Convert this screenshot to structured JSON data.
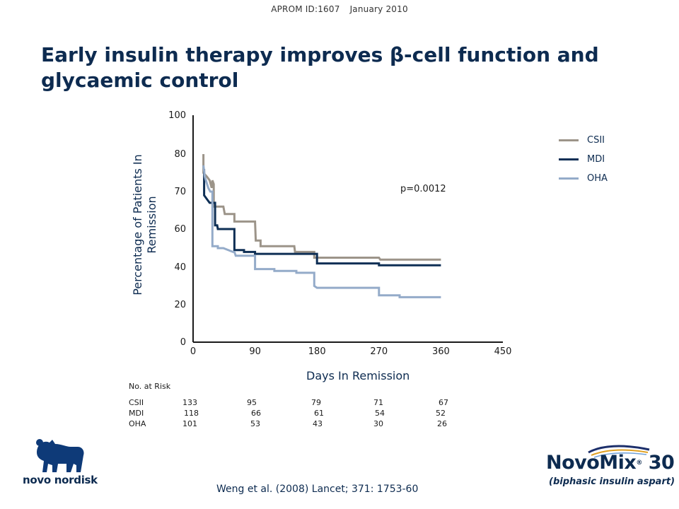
{
  "header": {
    "id_label": "APROM ID:1607",
    "date": "January 2010"
  },
  "slide_title": "Early insulin therapy improves β-cell function and glycaemic control",
  "footer": {
    "citation": "Weng et al. (2008) Lancet; 371: 1753-60",
    "company_logo_text": "novo nordisk",
    "product_logo": {
      "name": "NovoMix",
      "number": "30",
      "subtitle": "(biphasic insulin aspart)"
    }
  },
  "p_value": "p=0.0012",
  "risk_table": {
    "title": "No. at Risk",
    "rows": [
      {
        "label": "CSII",
        "values": [
          "133",
          "95",
          "79",
          "71",
          "67"
        ]
      },
      {
        "label": "MDI",
        "values": [
          "118",
          "66",
          "61",
          "54",
          "52"
        ]
      },
      {
        "label": "OHA",
        "values": [
          "101",
          "53",
          "43",
          "30",
          "26"
        ]
      }
    ]
  },
  "chart_data": {
    "type": "line",
    "title": "",
    "xlabel": "Days In Remission",
    "ylabel_lines": [
      "Percentage of Patients In",
      "Remission"
    ],
    "x_ticks": [
      "0",
      "90",
      "180",
      "270",
      "360",
      "450"
    ],
    "y_ticks": [
      "0",
      "20",
      "40",
      "60",
      "70",
      "80",
      "100"
    ],
    "xlim": [
      0,
      450
    ],
    "ylim": [
      0,
      100
    ],
    "grid": false,
    "legend_position": "top-right",
    "series": [
      {
        "name": "CSII",
        "color": "#9c9489",
        "points": [
          [
            15,
            80
          ],
          [
            15,
            75
          ],
          [
            20,
            74
          ],
          [
            24,
            73
          ],
          [
            27,
            71
          ],
          [
            28,
            73
          ],
          [
            30,
            72
          ],
          [
            30,
            66
          ],
          [
            44,
            66
          ],
          [
            46,
            64
          ],
          [
            60,
            64
          ],
          [
            60,
            62
          ],
          [
            90,
            62
          ],
          [
            91,
            54
          ],
          [
            98,
            54
          ],
          [
            98,
            51
          ],
          [
            147,
            51
          ],
          [
            148,
            48
          ],
          [
            176,
            48
          ],
          [
            176,
            45
          ],
          [
            270,
            45
          ],
          [
            272,
            44
          ],
          [
            360,
            44
          ]
        ]
      },
      {
        "name": "MDI",
        "color": "#0e2f55",
        "points": [
          [
            16,
            76
          ],
          [
            16,
            69
          ],
          [
            20,
            68
          ],
          [
            24,
            67
          ],
          [
            32,
            67
          ],
          [
            32,
            61
          ],
          [
            35,
            61
          ],
          [
            36,
            60
          ],
          [
            60,
            60
          ],
          [
            60,
            49
          ],
          [
            74,
            49
          ],
          [
            74,
            48
          ],
          [
            90,
            48
          ],
          [
            90,
            47
          ],
          [
            180,
            47
          ],
          [
            180,
            42
          ],
          [
            270,
            42
          ],
          [
            270,
            41
          ],
          [
            360,
            41
          ]
        ]
      },
      {
        "name": "OHA",
        "color": "#94abc9",
        "points": [
          [
            15,
            77
          ],
          [
            17,
            74
          ],
          [
            22,
            71
          ],
          [
            25,
            70
          ],
          [
            28,
            70
          ],
          [
            28,
            51
          ],
          [
            36,
            51
          ],
          [
            36,
            50
          ],
          [
            44,
            50
          ],
          [
            58,
            48
          ],
          [
            60,
            48
          ],
          [
            62,
            46
          ],
          [
            68,
            46
          ],
          [
            90,
            46
          ],
          [
            90,
            39
          ],
          [
            118,
            39
          ],
          [
            118,
            38
          ],
          [
            150,
            38
          ],
          [
            150,
            37
          ],
          [
            176,
            37
          ],
          [
            176,
            30
          ],
          [
            180,
            29
          ],
          [
            270,
            29
          ],
          [
            270,
            25
          ],
          [
            300,
            25
          ],
          [
            300,
            24
          ],
          [
            360,
            24
          ]
        ]
      }
    ]
  }
}
